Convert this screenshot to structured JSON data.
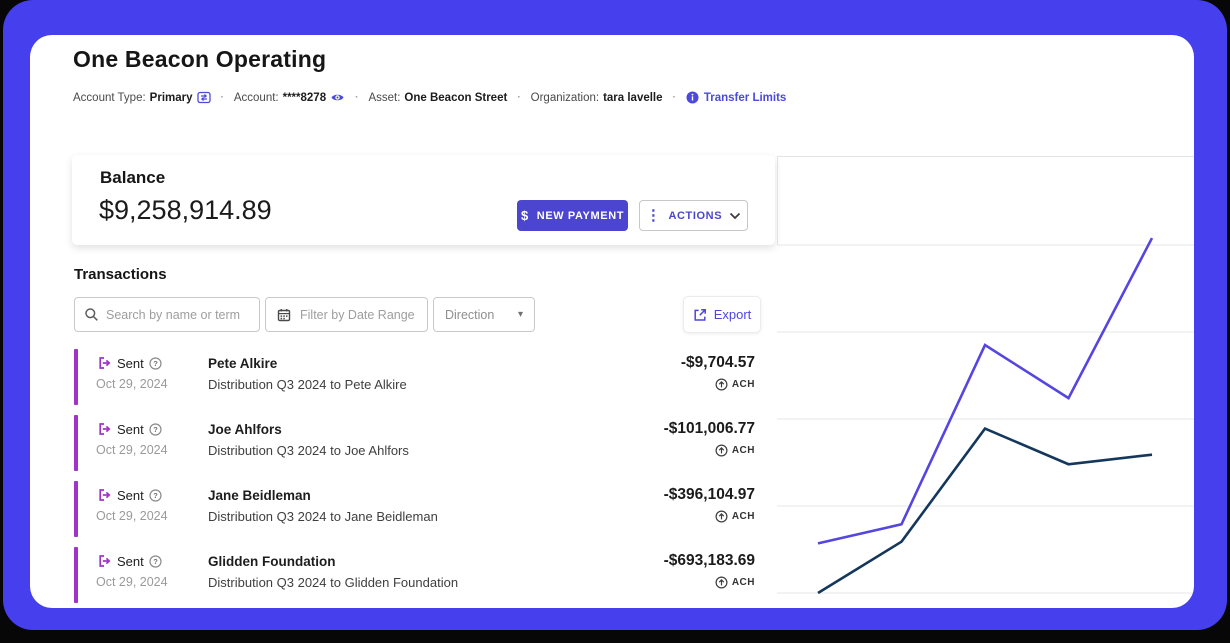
{
  "header": {
    "title": "One Beacon Operating",
    "meta": [
      {
        "label": "Account Type:",
        "value": "Primary",
        "icon": "transfer-icon"
      },
      {
        "label": "Account:",
        "value": "****8278",
        "icon": "eye-icon"
      },
      {
        "label": "Asset:",
        "value": "One Beacon Street"
      },
      {
        "label": "Organization:",
        "value": "tara lavelle"
      }
    ],
    "transfer_limits_label": "Transfer Limits"
  },
  "balance": {
    "label": "Balance",
    "amount": "$9,258,914.89",
    "new_payment_label": "NEW PAYMENT",
    "actions_label": "ACTIONS"
  },
  "transactions": {
    "title": "Transactions",
    "search_placeholder": "Search by name or term",
    "date_filter_label": "Filter by Date Range",
    "direction_label": "Direction",
    "export_label": "Export",
    "rows": [
      {
        "status": "Sent",
        "date": "Oct 29, 2024",
        "name": "Pete Alkire",
        "description": "Distribution Q3 2024 to Pete Alkire",
        "amount": "-$9,704.57",
        "method": "ACH"
      },
      {
        "status": "Sent",
        "date": "Oct 29, 2024",
        "name": "Joe Ahlfors",
        "description": "Distribution Q3 2024 to Joe Ahlfors",
        "amount": "-$101,006.77",
        "method": "ACH"
      },
      {
        "status": "Sent",
        "date": "Oct 29, 2024",
        "name": "Jane Beidleman",
        "description": "Distribution Q3 2024 to Jane Beidleman",
        "amount": "-$396,104.97",
        "method": "ACH"
      },
      {
        "status": "Sent",
        "date": "Oct 29, 2024",
        "name": "Glidden Foundation",
        "description": "Distribution Q3 2024 to Glidden Foundation",
        "amount": "-$693,183.69",
        "method": "ACH"
      }
    ]
  },
  "chart_data": {
    "type": "line",
    "x": [
      1,
      2,
      3,
      4,
      5
    ],
    "series": [
      {
        "name": "indigo-line",
        "color": "#5546df",
        "values": [
          0.57,
          0.79,
          2.85,
          2.24,
          4.08
        ]
      },
      {
        "name": "navy-line",
        "color": "#14375c",
        "values": [
          0.0,
          0.59,
          1.89,
          1.48,
          1.59
        ]
      }
    ],
    "title": "",
    "xlabel": "",
    "ylabel": "",
    "ylim": [
      0,
      5
    ],
    "grid": true,
    "gridline_count": 5,
    "legend": "none",
    "note": "panel clipped at right edge of card; no axis tick labels visible; values estimated in gridline units above bottom gridline"
  },
  "icons": {
    "separator_dot": "·",
    "kebab": "⋮",
    "caret_down": "▾",
    "dollar": "$"
  },
  "colors": {
    "frame_blue": "#453fee",
    "accent_indigo": "#4c45cf",
    "link_indigo": "#4d47d8",
    "sent_purple": "#a133c9",
    "chart_indigo": "#5546df",
    "chart_navy": "#14375c",
    "gridline": "#e7e7e7"
  }
}
